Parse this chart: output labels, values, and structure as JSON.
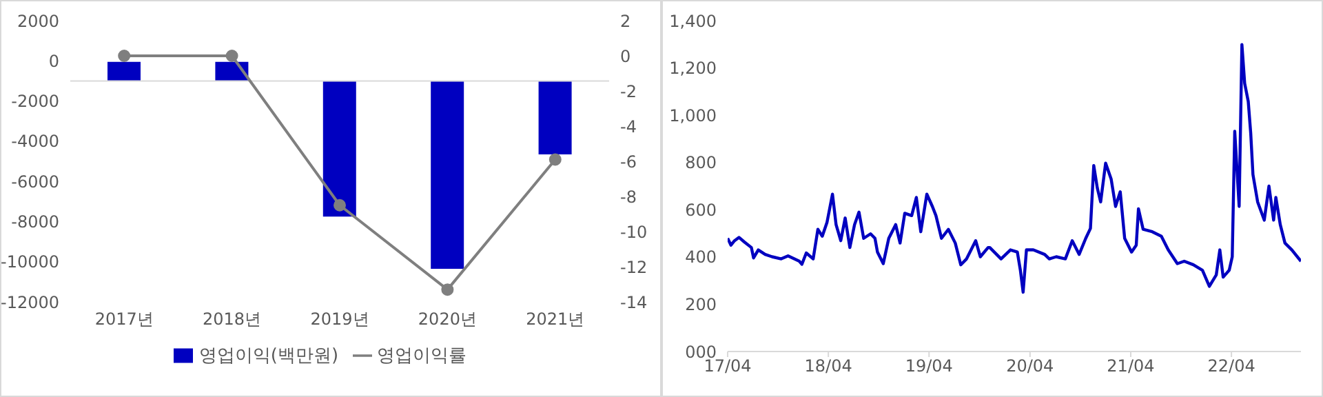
{
  "chart_data": [
    {
      "type": "bar",
      "categories": [
        "2017년",
        "2018년",
        "2019년",
        "2020년",
        "2021년"
      ],
      "series": [
        {
          "name": "영업이익(백만원)",
          "color": "#0000c0",
          "base": [
            -1000,
            -1000,
            -1000,
            -1000,
            -1000
          ],
          "values": [
            950,
            950,
            -6750,
            -9350,
            -3660
          ]
        },
        {
          "name": "영업이익률",
          "type": "line",
          "axis": "y2",
          "color": "#7f7f7f",
          "marker": "circle",
          "values": [
            0,
            0,
            -8.5,
            -13.3,
            -5.9
          ]
        }
      ],
      "ylim": [
        -12000,
        2000
      ],
      "yticks": [
        -12000,
        -10000,
        -8000,
        -6000,
        -4000,
        -2000,
        0,
        2000
      ],
      "y2lim": [
        -14,
        2
      ],
      "y2ticks": [
        -14,
        -12,
        -10,
        -8,
        -6,
        -4,
        -2,
        0,
        2
      ],
      "ref_lines": [
        {
          "axis": "y",
          "value": -1000,
          "color": "#d9d9d9"
        }
      ],
      "legend": "bottom"
    },
    {
      "type": "line",
      "marker": "none",
      "x": [
        "2017-04-01",
        "2017-04-13",
        "2017-04-26",
        "2017-05-12",
        "2017-06-01",
        "2017-06-26",
        "2017-07-04",
        "2017-07-21",
        "2017-08-15",
        "2017-09-09",
        "2017-10-12",
        "2017-11-06",
        "2017-12-17",
        "2017-12-26",
        "2018-01-11",
        "2018-02-05",
        "2018-02-22",
        "2018-03-10",
        "2018-03-27",
        "2018-04-16",
        "2018-04-29",
        "2018-05-16",
        "2018-06-01",
        "2018-06-18",
        "2018-07-05",
        "2018-07-21",
        "2018-08-07",
        "2018-09-01",
        "2018-09-17",
        "2018-09-26",
        "2018-10-17",
        "2018-11-06",
        "2018-12-01",
        "2018-12-17",
        "2019-01-03",
        "2019-01-28",
        "2019-02-14",
        "2019-03-02",
        "2019-03-24",
        "2019-04-13",
        "2019-04-26",
        "2019-05-16",
        "2019-06-10",
        "2019-07-05",
        "2019-07-25",
        "2019-08-15",
        "2019-09-17",
        "2019-10-04",
        "2019-11-01",
        "2019-11-07",
        "2019-12-18",
        "2020-01-21",
        "2020-02-15",
        "2020-02-26",
        "2020-03-07",
        "2020-03-19",
        "2020-04-13",
        "2020-05-24",
        "2020-06-10",
        "2020-07-05",
        "2020-08-07",
        "2020-09-01",
        "2020-09-26",
        "2020-10-20",
        "2020-11-06",
        "2020-11-18",
        "2020-12-01",
        "2020-12-13",
        "2020-12-31",
        "2021-01-20",
        "2021-02-05",
        "2021-02-22",
        "2021-03-10",
        "2021-04-04",
        "2021-04-21",
        "2021-04-29",
        "2021-05-16",
        "2021-06-18",
        "2021-07-21",
        "2021-08-15",
        "2021-09-17",
        "2021-10-12",
        "2021-11-14",
        "2021-12-17",
        "2022-01-11",
        "2022-02-05",
        "2022-02-18",
        "2022-03-02",
        "2022-03-24",
        "2022-04-04",
        "2022-04-13",
        "2022-04-29",
        "2022-05-09",
        "2022-05-19",
        "2022-06-01",
        "2022-06-10",
        "2022-06-18",
        "2022-07-05",
        "2022-07-29",
        "2022-08-15",
        "2022-09-01",
        "2022-09-09",
        "2022-09-25",
        "2022-10-12",
        "2022-11-06",
        "2022-12-09"
      ],
      "series": [
        {
          "color": "#0000c0",
          "values": [
            479,
            450,
            469,
            483,
            463,
            440,
            396,
            430,
            411,
            401,
            392,
            405,
            382,
            369,
            417,
            392,
            517,
            488,
            546,
            666,
            537,
            469,
            565,
            440,
            537,
            590,
            479,
            498,
            479,
            421,
            372,
            479,
            537,
            459,
            585,
            575,
            652,
            507,
            666,
            614,
            575,
            479,
            517,
            459,
            367,
            392,
            469,
            401,
            440,
            440,
            392,
            430,
            421,
            344,
            251,
            430,
            430,
            411,
            392,
            401,
            392,
            469,
            411,
            479,
            521,
            787,
            691,
            633,
            797,
            730,
            614,
            676,
            479,
            421,
            450,
            604,
            517,
            507,
            488,
            430,
            372,
            382,
            367,
            344,
            276,
            324,
            430,
            315,
            344,
            401,
            932,
            614,
            1299,
            1135,
            1058,
            923,
            749,
            633,
            556,
            700,
            556,
            652,
            537,
            459,
            430,
            382
          ]
        }
      ],
      "xlim": [
        "2017-04-01",
        "2022-12-09"
      ],
      "xticks": [
        {
          "value": "2017-04",
          "label": "17/04"
        },
        {
          "value": "2018-04",
          "label": "18/04"
        },
        {
          "value": "2019-04",
          "label": "19/04"
        },
        {
          "value": "2020-04",
          "label": "20/04"
        },
        {
          "value": "2021-04",
          "label": "21/04"
        },
        {
          "value": "2022-04",
          "label": "22/04"
        }
      ],
      "ylim": [
        0,
        1400
      ],
      "yticks": [
        {
          "value": 0,
          "label": "000"
        },
        200,
        400,
        600,
        800,
        {
          "value": 1000,
          "label": "1,000"
        },
        {
          "value": 1200,
          "label": "1,200"
        },
        {
          "value": 1400,
          "label": "1,400"
        }
      ]
    }
  ]
}
